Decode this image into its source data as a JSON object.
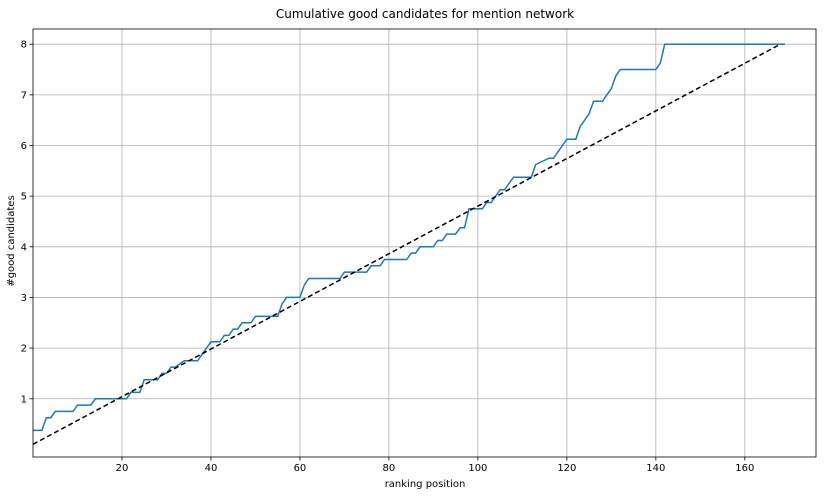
{
  "chart_data": {
    "type": "line",
    "title": "Cumulative good candidates for mention network",
    "xlabel": "ranking position",
    "ylabel": "#good candidates",
    "xlim": [
      0,
      176
    ],
    "ylim": [
      -0.15,
      8.3
    ],
    "xticks": [
      20,
      40,
      60,
      80,
      100,
      120,
      140,
      160
    ],
    "yticks": [
      1,
      2,
      3,
      4,
      5,
      6,
      7,
      8
    ],
    "grid": true,
    "series": [
      {
        "style": "solid",
        "color": "#1f77b4",
        "x": [
          0,
          1,
          2,
          3,
          4,
          5,
          6,
          9,
          10,
          11,
          12,
          13,
          14,
          21,
          22,
          23,
          24,
          25,
          28,
          29,
          30,
          31,
          32,
          34,
          35,
          37,
          39,
          40,
          41,
          42,
          43,
          44,
          45,
          46,
          47,
          48,
          49,
          50,
          51,
          54,
          55,
          56,
          57,
          59,
          60,
          61,
          62,
          63,
          69,
          70,
          75,
          76,
          78,
          79,
          80,
          84,
          85,
          86,
          87,
          90,
          91,
          92,
          93,
          95,
          96,
          97,
          98,
          100,
          101,
          102,
          103,
          104,
          105,
          106,
          107,
          108,
          111,
          112,
          113,
          116,
          117,
          118,
          119,
          120,
          122,
          123,
          124,
          125,
          126,
          127,
          128,
          129,
          130,
          131,
          132,
          133,
          140,
          141,
          142,
          169
        ],
        "y": [
          0.375,
          0.375,
          0.375,
          0.625,
          0.625,
          0.75,
          0.75,
          0.75,
          0.875,
          0.875,
          0.875,
          0.875,
          1.0,
          1.0,
          1.125,
          1.125,
          1.125,
          1.375,
          1.375,
          1.5,
          1.5,
          1.625,
          1.625,
          1.75,
          1.75,
          1.75,
          2.0,
          2.125,
          2.125,
          2.125,
          2.25,
          2.25,
          2.375,
          2.375,
          2.5,
          2.5,
          2.5,
          2.625,
          2.625,
          2.625,
          2.625,
          2.875,
          3.0,
          3.0,
          3.0,
          3.25,
          3.375,
          3.375,
          3.375,
          3.5,
          3.5,
          3.625,
          3.625,
          3.75,
          3.75,
          3.75,
          3.875,
          3.875,
          4.0,
          4.0,
          4.125,
          4.125,
          4.25,
          4.25,
          4.375,
          4.375,
          4.75,
          4.75,
          4.75,
          4.875,
          4.875,
          5.0,
          5.125,
          5.125,
          5.25,
          5.375,
          5.375,
          5.375,
          5.625,
          5.75,
          5.75,
          5.875,
          6.0,
          6.125,
          6.125,
          6.375,
          6.5,
          6.625,
          6.875,
          6.875,
          6.875,
          7.0,
          7.125,
          7.375,
          7.5,
          7.5,
          7.5,
          7.625,
          8.0,
          8.0
        ]
      },
      {
        "style": "dashed",
        "color": "#000000",
        "x": [
          0,
          168
        ],
        "y": [
          0.1,
          8.0
        ]
      }
    ]
  }
}
